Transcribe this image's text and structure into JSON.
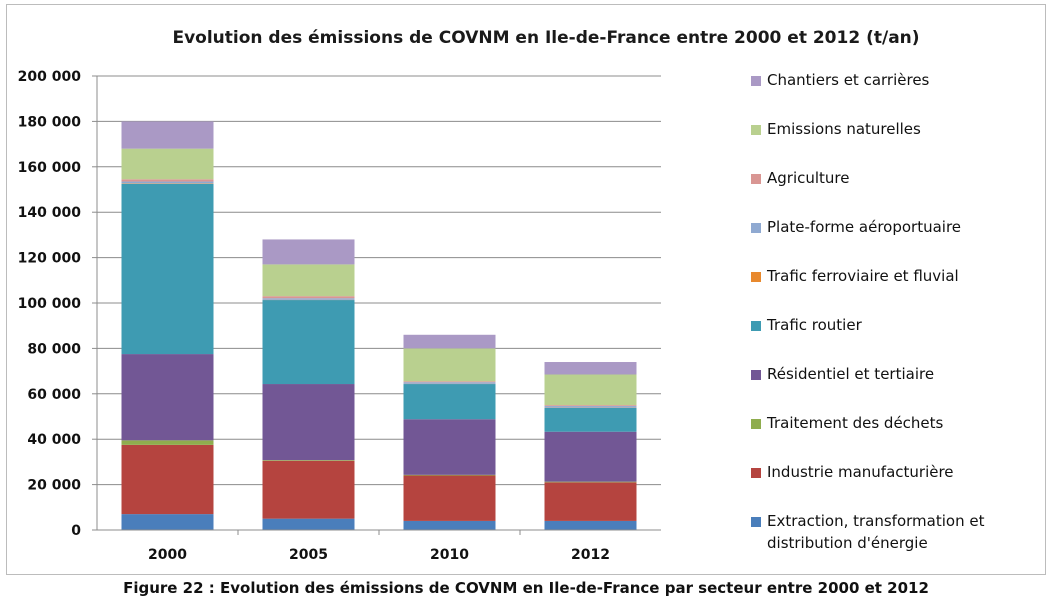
{
  "caption": "Figure 22 : Evolution des émissions de COVNM en Ile-de-France par secteur entre 2000 et 2012",
  "chart_data": {
    "type": "bar",
    "stacked": true,
    "title": "Evolution des émissions de COVNM en Ile-de-France entre 2000 et 2012  (t/an)",
    "xlabel": "",
    "ylabel": "",
    "categories": [
      "2000",
      "2005",
      "2010",
      "2012"
    ],
    "ylim": [
      0,
      200000
    ],
    "yticks": [
      0,
      20000,
      40000,
      60000,
      80000,
      100000,
      120000,
      140000,
      160000,
      180000,
      200000
    ],
    "ytick_labels": [
      "0",
      "20 000",
      "40 000",
      "60 000",
      "80 000",
      "100 000",
      "120 000",
      "140 000",
      "160 000",
      "180 000",
      "200 000"
    ],
    "grid": true,
    "legend_position": "right",
    "series": [
      {
        "name": "Extraction, transformation et distribution d'énergie",
        "color": "#4a7ebb",
        "values": [
          7000,
          5000,
          4000,
          4000
        ]
      },
      {
        "name": "Industrie manufacturière",
        "color": "#b5443f",
        "values": [
          30500,
          25500,
          20000,
          17000
        ]
      },
      {
        "name": "Traitement des déchets",
        "color": "#8fad4e",
        "values": [
          2000,
          300,
          300,
          300
        ]
      },
      {
        "name": "Résidentiel et tertiaire",
        "color": "#725795",
        "values": [
          38000,
          33500,
          24500,
          22000
        ]
      },
      {
        "name": "Trafic routier",
        "color": "#3e9bb2",
        "values": [
          75000,
          37000,
          15500,
          10500
        ]
      },
      {
        "name": "Trafic ferroviaire et fluvial",
        "color": "#e8892e",
        "values": [
          200,
          100,
          100,
          100
        ]
      },
      {
        "name": "Plate-forme aéroportuaire",
        "color": "#8fa9d1",
        "values": [
          800,
          700,
          700,
          700
        ]
      },
      {
        "name": "Agriculture",
        "color": "#d99693",
        "values": [
          1000,
          900,
          400,
          400
        ]
      },
      {
        "name": "Emissions naturelles",
        "color": "#b9d08f",
        "values": [
          13500,
          14000,
          14500,
          13500
        ]
      },
      {
        "name": "Chantiers et carrières",
        "color": "#aa99c5",
        "values": [
          12000,
          11000,
          6000,
          5500
        ]
      }
    ]
  }
}
